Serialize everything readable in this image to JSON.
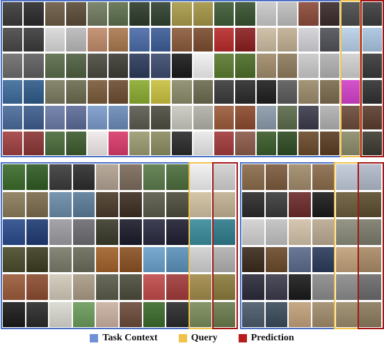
{
  "legend": {
    "items": [
      {
        "label": "Task Context",
        "color": "#6f8fd6"
      },
      {
        "label": "Query",
        "color": "#f0c24a"
      },
      {
        "label": "Prediction",
        "color": "#b81d1d"
      }
    ]
  },
  "frame_colors": {
    "context": "#4a6fc4",
    "query": "#f0c24a",
    "prediction": "#a41414"
  },
  "panels": [
    {
      "rows": [
        [
          "#3a3a3a",
          "#2a2a2a",
          "#6a5a44",
          "#5a4a36",
          "#6e7a5e",
          "#5c6e4c",
          "#2c3a2a",
          "#304030",
          "#a89a4a",
          "#a29445",
          "#3e5a36",
          "#36502f",
          "#c8c8c8",
          "#bdbdbd",
          "#8a4a3a",
          "#3a2a2a",
          "#4a4a4a",
          "#3c3c3c"
        ],
        [
          "#474747",
          "#3a3a3a",
          "#d8d8d8",
          "#b8b8b8",
          "#c08a6a",
          "#a8784e",
          "#4a6aa6",
          "#3c5c96",
          "#8a5a3a",
          "#7a4c2e",
          "#b82a2a",
          "#8a1e1e",
          "#cbbba0",
          "#bfae92",
          "#d0d0d6",
          "#505058",
          "#b8d0e8",
          "#a8c4de"
        ],
        [
          "#6c6c6c",
          "#5e5e5e",
          "#5a6a4a",
          "#4e5e40",
          "#4a4a40",
          "#3c3c34",
          "#2c3a5a",
          "#3c4a6e",
          "#1a1a1a",
          "#f0f0f0",
          "#5a7a30",
          "#4c6c28",
          "#a08a6a",
          "#8e7a5c",
          "#c8c8c8",
          "#b0b0b0",
          "#d0d0d0",
          "#383838"
        ],
        [
          "#3c6a9a",
          "#2e5a88",
          "#7a7a60",
          "#6a6a50",
          "#7a5a3a",
          "#6c4c30",
          "#8aaa30",
          "#c8c040",
          "#8a8a6a",
          "#6a6a50",
          "#3a3a3a",
          "#2a2a2a",
          "#1e1e1e",
          "#5a5a5a",
          "#9a8a6a",
          "#7a6a4e",
          "#d040c8",
          "#303030"
        ],
        [
          "#4a6a9a",
          "#3c5c8c",
          "#6a7aa6",
          "#5c6a96",
          "#7a9aca",
          "#6a8ab8",
          "#5a5a50",
          "#4c4c40",
          "#c8c8c0",
          "#b0b0a8",
          "#9a5a3a",
          "#8a4a2e",
          "#8a9aaa",
          "#5a6a4a",
          "#3a3a4a",
          "#b0b0b0",
          "#6a4a3a",
          "#5a3c2e"
        ],
        [
          "#a04040",
          "#8a3434",
          "#4a6a3a",
          "#3c5a2e",
          "#f0e8e8",
          "#d83a6a",
          "#9a9a70",
          "#8a8a60",
          "#2a2a2a",
          "#e8e8e8",
          "#a03a3a",
          "#8a5a4a",
          "#3a5a2a",
          "#2e4a22",
          "#6a4a2a",
          "#5a3c22",
          "#8a8a6a",
          "#3c3a30"
        ]
      ]
    },
    {
      "rows": [
        [
          "#3a6a2a",
          "#2e5a22",
          "#3a3a3a",
          "#2c2c2c",
          "#b0a090",
          "#7a6a5a",
          "#5a7a4a",
          "#4c6c3c",
          "#f0f0f0",
          "#d0d0d0"
        ],
        [
          "#8a7a5a",
          "#7a6a4c",
          "#6a8aa8",
          "#5a7a98",
          "#4a3a2a",
          "#3c2e22",
          "#5a5a4a",
          "#4c4c3c",
          "#d0c0a0",
          "#c0b090"
        ],
        [
          "#2a4a8a",
          "#1e3a72",
          "#9a9aa0",
          "#6a6a70",
          "#3a3a2a",
          "#1a1a2a",
          "#2a2a40",
          "#1e1e30",
          "#3a8a9a",
          "#2e7a8a"
        ],
        [
          "#4a4a2a",
          "#3c3c22",
          "#7a7a6a",
          "#6a6a5a",
          "#a0602a",
          "#8a5022",
          "#6aa0ca",
          "#5a90b8",
          "#d0d0d0",
          "#b0b0b0"
        ],
        [
          "#9a5a3a",
          "#8a4c30",
          "#d0c8b8",
          "#a89a84",
          "#5a5a4a",
          "#4c4c3c",
          "#c04a4a",
          "#a03a3a",
          "#a08a4a",
          "#8a7a3c"
        ],
        [
          "#1a1a1a",
          "#2a2a2a",
          "#d8d8d0",
          "#6a9a5a",
          "#c8b0a0",
          "#6a4a3a",
          "#3a6a2a",
          "#2a2a2a",
          "#7a8a5a",
          "#6a7a4c"
        ]
      ]
    },
    {
      "rows": [
        [
          "#8a6a4a",
          "#7a5a3c",
          "#a08a6a",
          "#8a6a4a",
          "#c0c8d8",
          "#b0b8c8"
        ],
        [
          "#2a2a2a",
          "#3a3a3a",
          "#6a2a2a",
          "#1a1a1a",
          "#6a5a3a",
          "#5a4c2e"
        ],
        [
          "#d0d0d0",
          "#c0c0c0",
          "#d0c0a8",
          "#b8a890",
          "#8a8a7a",
          "#7a7a6a"
        ],
        [
          "#3a2a1a",
          "#6a4a2a",
          "#5a6a8a",
          "#2a3a5a",
          "#c0a07a",
          "#a88a66"
        ],
        [
          "#2a2a3a",
          "#3a3a4a",
          "#1a1a1a",
          "#8a8a8a",
          "#8a8a8a",
          "#6a6a6a"
        ],
        [
          "#4a5a6a",
          "#3a4a5a",
          "#c0a07a",
          "#a08a6a",
          "#9a8a6a",
          "#8a7a5c"
        ]
      ]
    }
  ]
}
